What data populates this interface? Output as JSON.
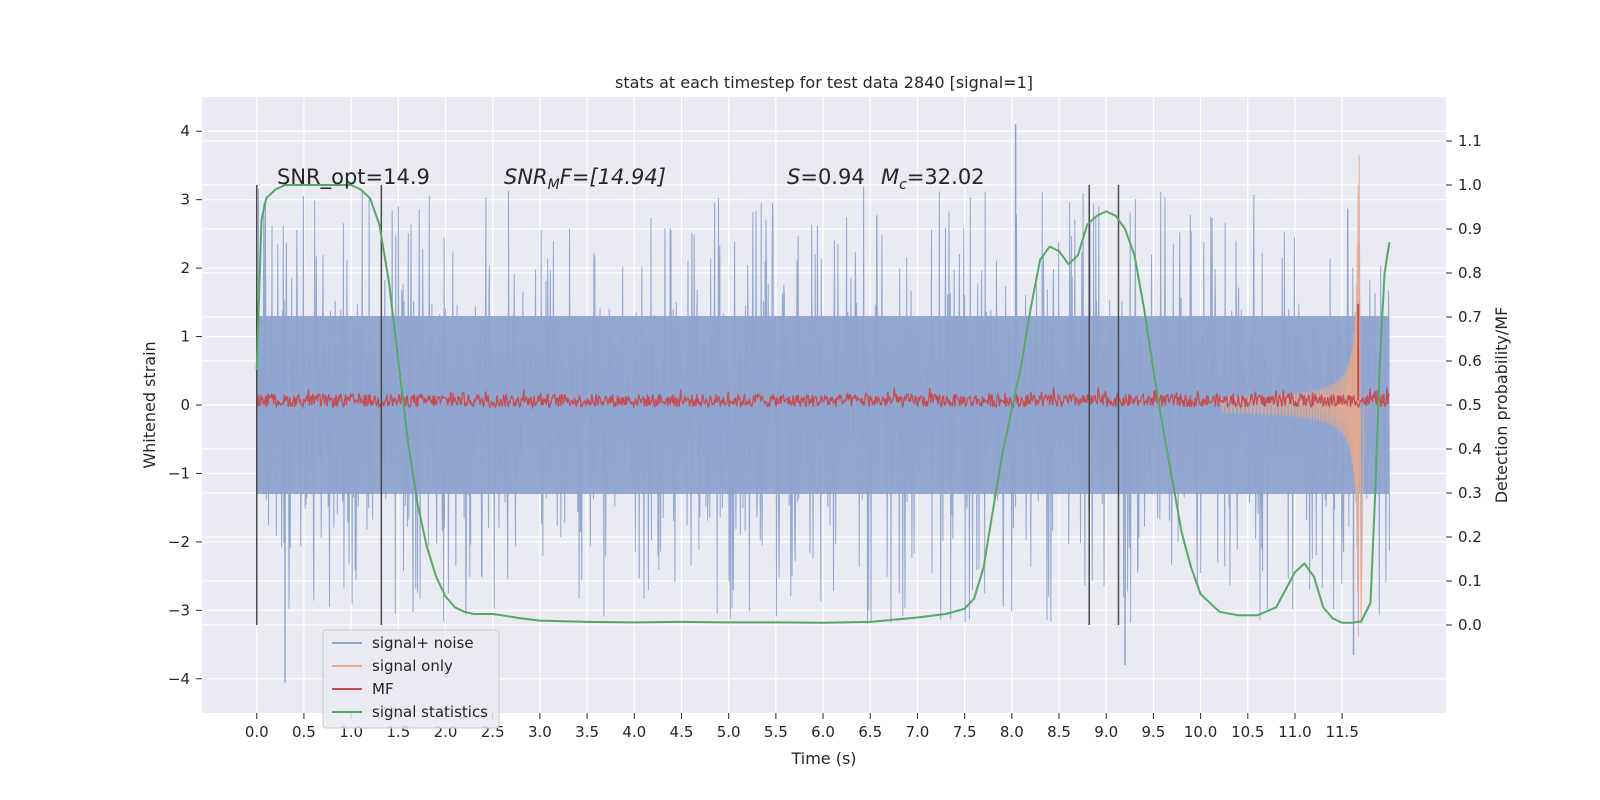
{
  "chart_data": {
    "type": "line",
    "title": "stats at each timestep for test data 2840 [signal=1]",
    "xlabel": "Time (s)",
    "ylabel_left": "Whitened strain",
    "ylabel_right": "Detection probability/MF",
    "xlim": [
      -0.58,
      12.6
    ],
    "ylim_left": [
      -4.5,
      4.5
    ],
    "ylim_right": [
      -0.2,
      1.2
    ],
    "x_ticks": [
      "0.0",
      "0.5",
      "1.0",
      "1.5",
      "2.0",
      "2.5",
      "3.0",
      "3.5",
      "4.0",
      "4.5",
      "5.0",
      "5.5",
      "6.0",
      "6.5",
      "7.0",
      "7.5",
      "8.0",
      "8.5",
      "9.0",
      "9.5",
      "10.0",
      "10.5",
      "11.0",
      "11.5"
    ],
    "y_ticks_left": [
      "−4",
      "−3",
      "−2",
      "−1",
      "0",
      "1",
      "2",
      "3",
      "4"
    ],
    "y_ticks_right": [
      "0.0",
      "0.1",
      "0.2",
      "0.3",
      "0.4",
      "0.5",
      "0.6",
      "0.7",
      "0.8",
      "0.9",
      "1.0",
      "1.1"
    ],
    "grid": true,
    "legend_position": "lower-left",
    "annotations": {
      "snr_opt": "SNR_opt=14.9",
      "snr_mf_base": "SNR",
      "snr_mf_sub": "M",
      "snr_mf_rest": "F=[14.94]",
      "s_label": "S",
      "s_value": "=0.94",
      "mc_label": "M",
      "mc_sub": "c",
      "mc_value": "=32.02"
    },
    "vertical_markers": [
      0.0,
      1.32,
      8.82,
      9.13
    ],
    "series": [
      {
        "name": "signal+ noise",
        "axis": "left",
        "color": "#8ea3cf",
        "description_envelope": {
          "t_range": [
            0.0,
            12.0
          ],
          "core_band": [
            -1.3,
            1.3
          ],
          "typical_peak": 2.3,
          "extremes": [
            {
              "t": 8.04,
              "y": 4.1
            },
            {
              "t": 0.3,
              "y": -4.05
            },
            {
              "t": 11.62,
              "y": -3.65
            },
            {
              "t": 9.2,
              "y": -3.8
            }
          ]
        }
      },
      {
        "name": "signal only",
        "axis": "left",
        "color": "#e8a98a",
        "chirp": {
          "t_start": 10.2,
          "t_merge": 11.68,
          "amp_start": 0.05,
          "amp_peak": 3.65
        }
      },
      {
        "name": "MF",
        "axis": "right",
        "color": "#c44e52",
        "baseline": 0.51,
        "noise_amp": 0.015,
        "peak": {
          "t": 11.67,
          "y": 0.73
        }
      },
      {
        "name": "signal statistics",
        "axis": "right",
        "color": "#55a868",
        "x": [
          0.0,
          0.05,
          0.1,
          0.2,
          0.3,
          0.5,
          0.8,
          1.0,
          1.1,
          1.2,
          1.3,
          1.4,
          1.5,
          1.6,
          1.7,
          1.8,
          1.9,
          2.0,
          2.1,
          2.2,
          2.3,
          2.4,
          2.5,
          2.6,
          2.8,
          3.0,
          3.5,
          4.0,
          4.5,
          5.0,
          5.5,
          6.0,
          6.5,
          6.8,
          7.0,
          7.3,
          7.5,
          7.6,
          7.7,
          7.8,
          7.9,
          8.0,
          8.1,
          8.2,
          8.3,
          8.4,
          8.5,
          8.6,
          8.7,
          8.8,
          8.9,
          9.0,
          9.1,
          9.2,
          9.3,
          9.4,
          9.5,
          9.6,
          9.7,
          9.8,
          9.9,
          10.0,
          10.2,
          10.4,
          10.6,
          10.8,
          11.0,
          11.1,
          11.2,
          11.3,
          11.4,
          11.5,
          11.6,
          11.7,
          11.8,
          11.85,
          11.9,
          11.95,
          12.0
        ],
        "y": [
          0.58,
          0.92,
          0.97,
          0.99,
          1.0,
          1.0,
          1.0,
          1.0,
          0.99,
          0.97,
          0.91,
          0.78,
          0.6,
          0.42,
          0.28,
          0.18,
          0.11,
          0.065,
          0.04,
          0.03,
          0.025,
          0.025,
          0.025,
          0.022,
          0.015,
          0.01,
          0.007,
          0.006,
          0.007,
          0.006,
          0.006,
          0.005,
          0.007,
          0.013,
          0.017,
          0.025,
          0.037,
          0.06,
          0.13,
          0.26,
          0.39,
          0.49,
          0.59,
          0.72,
          0.83,
          0.86,
          0.85,
          0.82,
          0.84,
          0.91,
          0.93,
          0.94,
          0.93,
          0.9,
          0.84,
          0.72,
          0.58,
          0.45,
          0.33,
          0.21,
          0.13,
          0.07,
          0.03,
          0.022,
          0.022,
          0.04,
          0.12,
          0.14,
          0.11,
          0.04,
          0.015,
          0.005,
          0.005,
          0.008,
          0.05,
          0.3,
          0.6,
          0.8,
          0.87
        ]
      }
    ]
  },
  "legend": {
    "items": [
      {
        "label": "signal+ noise",
        "color": "#8ea3cf"
      },
      {
        "label": "signal only",
        "color": "#e8a98a"
      },
      {
        "label": "MF",
        "color": "#c44e52"
      },
      {
        "label": "signal statistics",
        "color": "#55a868"
      }
    ]
  },
  "colors": {
    "axes_background": "#eaeaf2",
    "grid": "#ffffff",
    "marker_line": "#4a4a4a"
  }
}
